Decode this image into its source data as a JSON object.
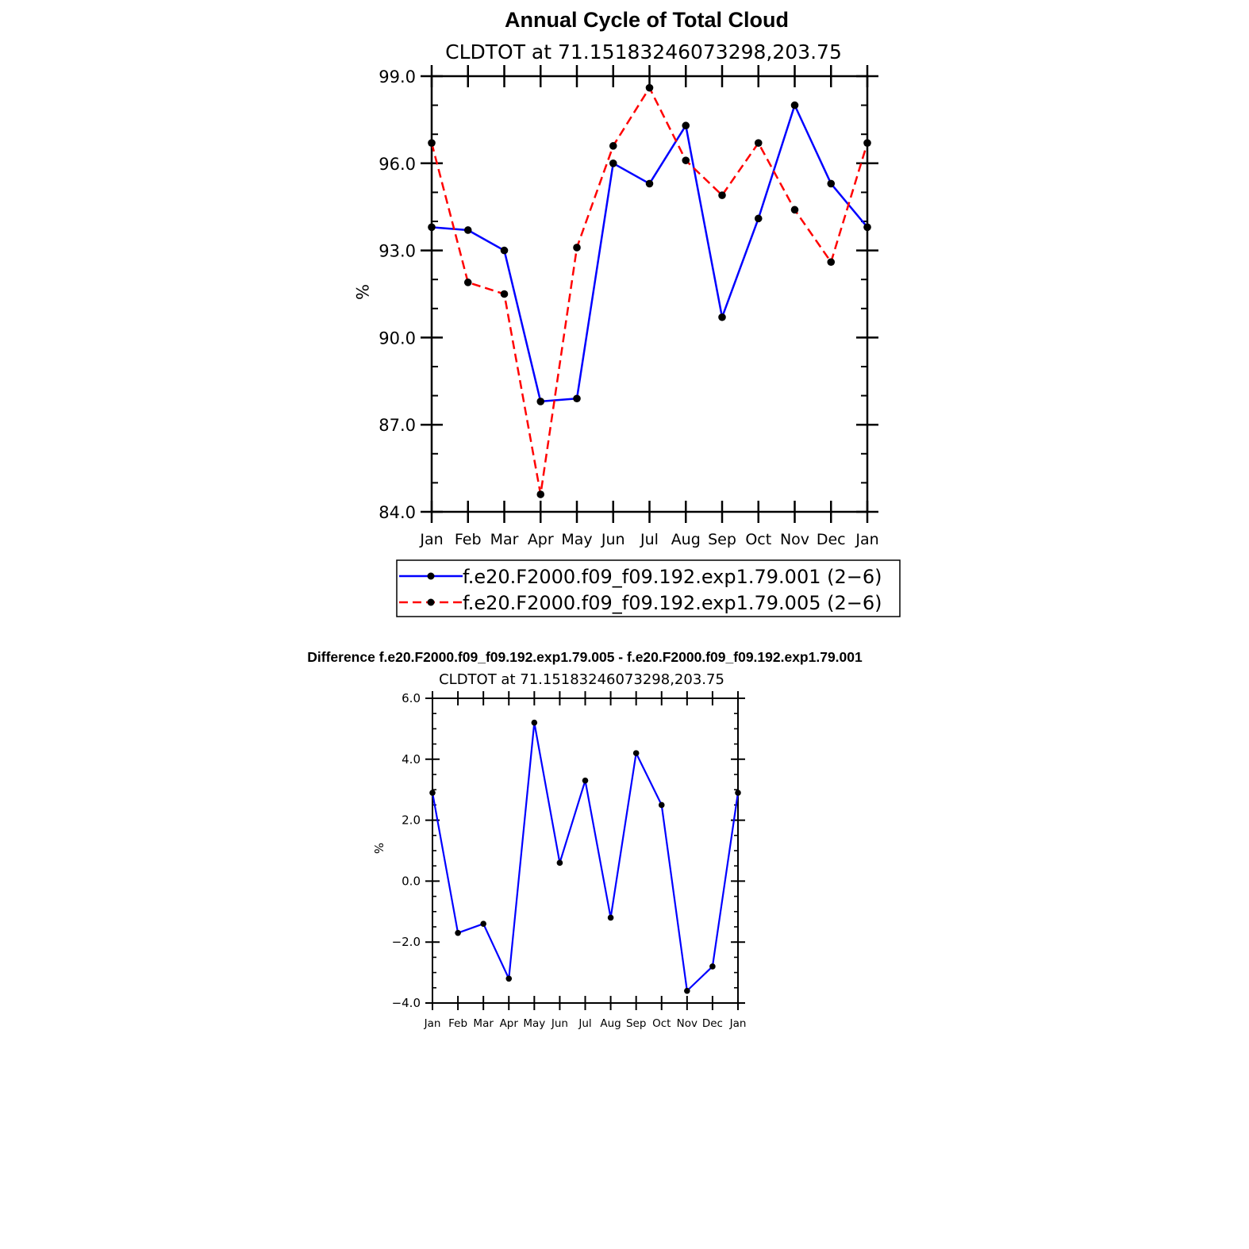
{
  "chart_data": [
    {
      "type": "line",
      "title": "Annual Cycle of Total Cloud",
      "subtitle": "CLDTOT  at  71.15183246073298,203.75",
      "ylabel": "%",
      "xlabel": "",
      "ylim": [
        84.0,
        99.0
      ],
      "yticks": [
        84.0,
        87.0,
        90.0,
        93.0,
        96.0,
        99.0
      ],
      "ytick_labels": [
        "84.0",
        "87.0",
        "90.0",
        "93.0",
        "96.0",
        "99.0"
      ],
      "categories": [
        "Jan",
        "Feb",
        "Mar",
        "Apr",
        "May",
        "Jun",
        "Jul",
        "Aug",
        "Sep",
        "Oct",
        "Nov",
        "Dec",
        "Jan"
      ],
      "grid": false,
      "legend_position": "bottom",
      "series": [
        {
          "name": "f.e20.F2000.f09_f09.192.exp1.79.001 (2−6)",
          "color": "#0000ff",
          "style": "solid",
          "values": [
            93.8,
            93.7,
            93.0,
            87.8,
            87.9,
            96.0,
            95.3,
            97.3,
            90.7,
            94.1,
            98.0,
            95.3,
            93.8
          ]
        },
        {
          "name": "f.e20.F2000.f09_f09.192.exp1.79.005 (2−6)",
          "color": "#ff0000",
          "style": "dashed",
          "values": [
            96.7,
            91.9,
            91.5,
            84.6,
            93.1,
            96.6,
            98.6,
            96.1,
            94.9,
            96.7,
            94.4,
            92.6,
            96.7
          ]
        }
      ]
    },
    {
      "type": "line",
      "title": "Difference f.e20.F2000.f09_f09.192.exp1.79.005 - f.e20.F2000.f09_f09.192.exp1.79.001",
      "subtitle": "CLDTOT  at  71.15183246073298,203.75",
      "ylabel": "%",
      "xlabel": "",
      "ylim": [
        -4.0,
        6.0
      ],
      "yticks": [
        -4.0,
        -2.0,
        0.0,
        2.0,
        4.0,
        6.0
      ],
      "ytick_labels": [
        "−4.0",
        "−2.0",
        "0.0",
        "2.0",
        "4.0",
        "6.0"
      ],
      "categories": [
        "Jan",
        "Feb",
        "Mar",
        "Apr",
        "May",
        "Jun",
        "Jul",
        "Aug",
        "Sep",
        "Oct",
        "Nov",
        "Dec",
        "Jan"
      ],
      "grid": false,
      "series": [
        {
          "color": "#0000ff",
          "style": "solid",
          "values": [
            2.9,
            -1.7,
            -1.4,
            -3.2,
            5.2,
            0.6,
            3.3,
            -1.2,
            4.2,
            2.5,
            -3.6,
            -2.8,
            2.9
          ]
        }
      ]
    }
  ]
}
